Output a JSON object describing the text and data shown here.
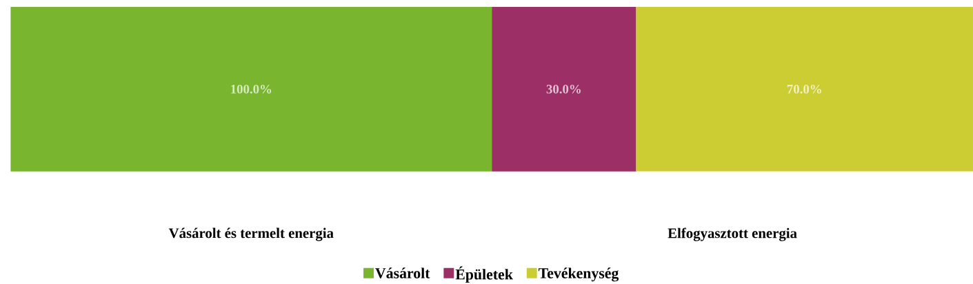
{
  "chart_data": {
    "type": "other",
    "categories": [
      "Vásárolt és termelt energia",
      "Elfogyasztott energia"
    ],
    "series": [
      {
        "name": "Vásárolt",
        "color": "#7ab530",
        "values": [
          100,
          null
        ],
        "value_labels": [
          "100.0%",
          null
        ]
      },
      {
        "name": "Épületek",
        "color": "#9b2f66",
        "values": [
          null,
          30
        ],
        "value_labels": [
          null,
          "30.0%"
        ]
      },
      {
        "name": "Tevékenység",
        "color": "#cccd32",
        "values": [
          null,
          70
        ],
        "value_labels": [
          null,
          "70.0%"
        ]
      }
    ],
    "legend": "bottom"
  }
}
